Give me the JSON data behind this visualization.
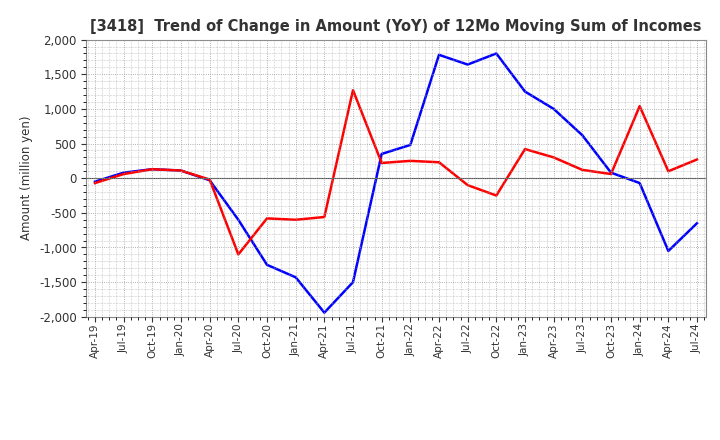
{
  "title": "[3418]  Trend of Change in Amount (YoY) of 12Mo Moving Sum of Incomes",
  "ylabel": "Amount (million yen)",
  "xlabels": [
    "Apr-19",
    "Jul-19",
    "Oct-19",
    "Jan-20",
    "Apr-20",
    "Jul-20",
    "Oct-20",
    "Jan-21",
    "Apr-21",
    "Jul-21",
    "Oct-21",
    "Jan-22",
    "Apr-22",
    "Jul-22",
    "Oct-22",
    "Jan-23",
    "Apr-23",
    "Jul-23",
    "Oct-23",
    "Jan-24",
    "Apr-24",
    "Jul-24"
  ],
  "ordinary_income": [
    -50,
    80,
    130,
    110,
    -30,
    -600,
    -1250,
    -1430,
    -1940,
    -1500,
    350,
    480,
    1780,
    1640,
    1800,
    1250,
    1000,
    620,
    80,
    -70,
    -1050,
    -650
  ],
  "net_income": [
    -70,
    60,
    130,
    110,
    -20,
    -1100,
    -580,
    -600,
    -560,
    1270,
    220,
    250,
    230,
    -100,
    -250,
    420,
    300,
    120,
    60,
    1040,
    100,
    270
  ],
  "ordinary_color": "#0000ff",
  "net_color": "#ff0000",
  "ylim": [
    -2000,
    2000
  ],
  "yticks": [
    -2000,
    -1500,
    -1000,
    -500,
    0,
    500,
    1000,
    1500
  ],
  "background_color": "#ffffff",
  "grid_color": "#999999",
  "linewidth": 1.8
}
